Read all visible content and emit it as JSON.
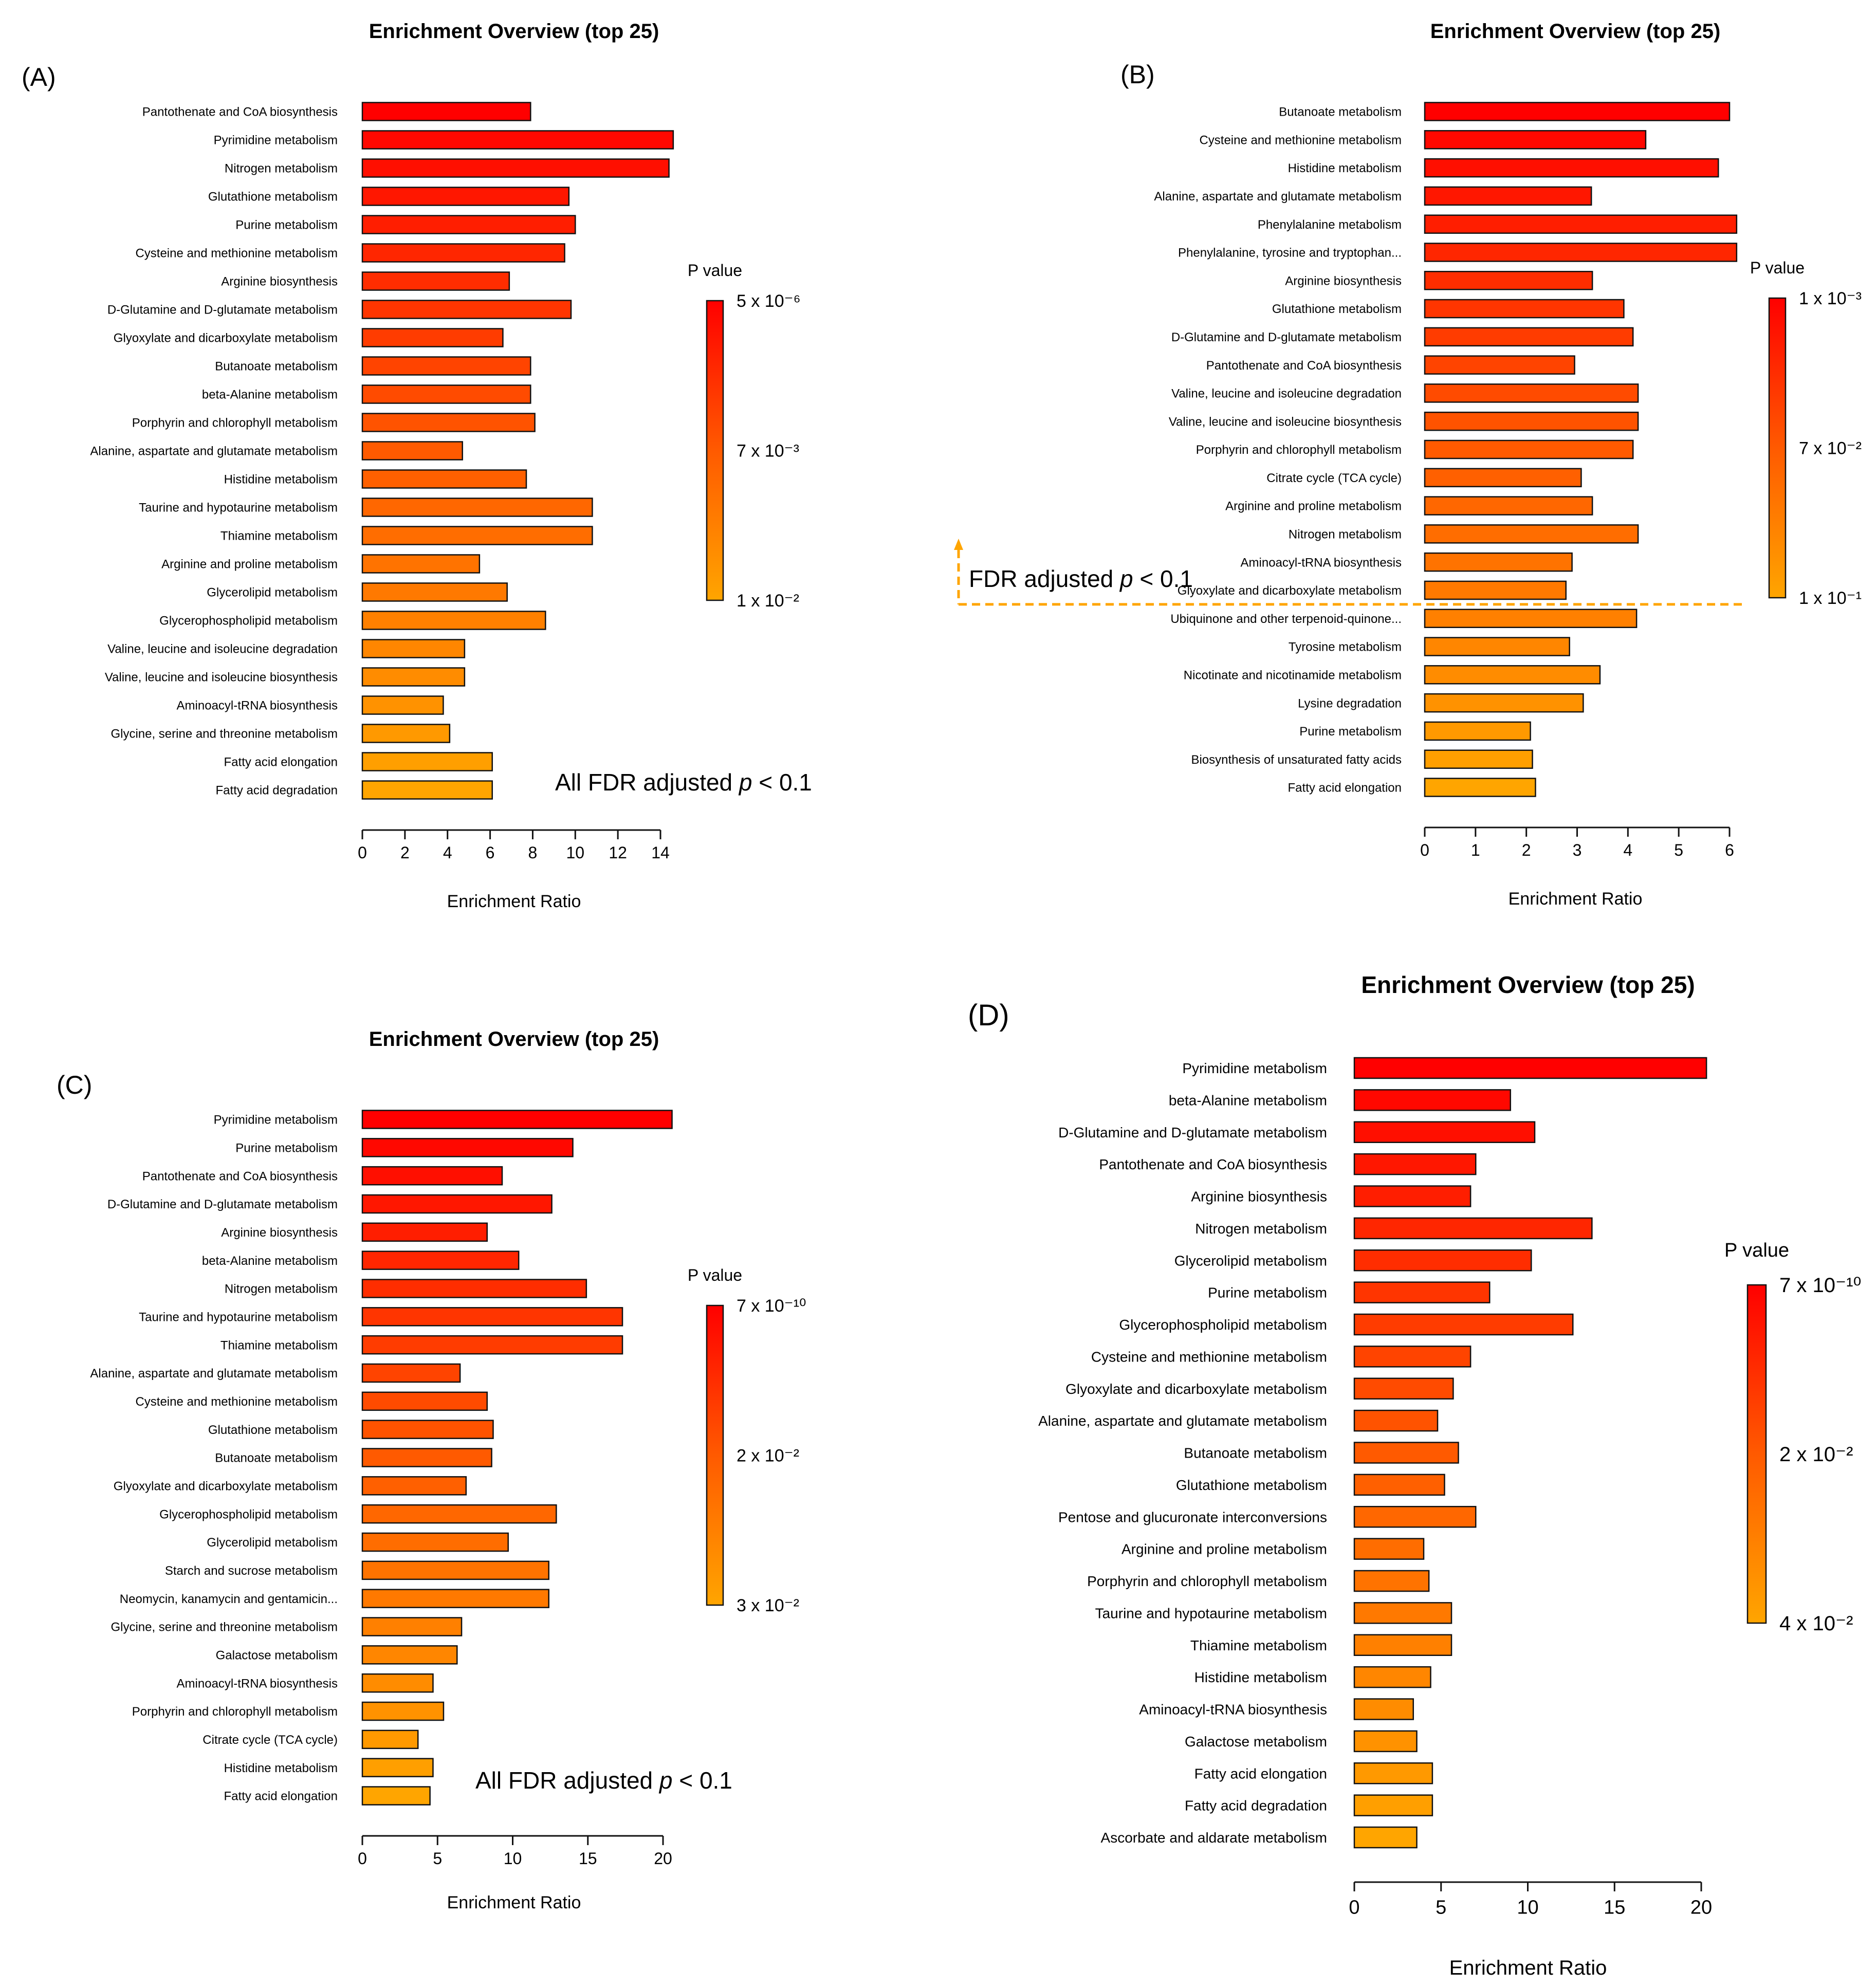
{
  "chart_data": [
    {
      "type": "bar",
      "panel_label": "(A)",
      "title": "Enrichment Overview (top 25)",
      "xlabel": "Enrichment Ratio",
      "ylabel": "",
      "xlim": [
        0,
        14
      ],
      "xticks": [
        0,
        2,
        4,
        6,
        8,
        10,
        12,
        14
      ],
      "legend_title": "P value",
      "legend_labels": [
        "5 x 10⁻⁶",
        "7 x 10⁻³",
        "1 x 10⁻²"
      ],
      "annotation": "All FDR adjusted p < 0.1",
      "categories": [
        "Pantothenate and CoA biosynthesis",
        "Pyrimidine metabolism",
        "Nitrogen metabolism",
        "Glutathione metabolism",
        "Purine metabolism",
        "Cysteine and methionine metabolism",
        "Arginine biosynthesis",
        "D-Glutamine and D-glutamate metabolism",
        "Glyoxylate and dicarboxylate metabolism",
        "Butanoate metabolism",
        "beta-Alanine metabolism",
        "Porphyrin and chlorophyll metabolism",
        "Alanine, aspartate and glutamate metabolism",
        "Histidine metabolism",
        "Taurine and hypotaurine metabolism",
        "Thiamine metabolism",
        "Arginine and proline metabolism",
        "Glycerolipid metabolism",
        "Glycerophospholipid metabolism",
        "Valine, leucine and isoleucine degradation",
        "Valine, leucine and isoleucine biosynthesis",
        "Aminoacyl-tRNA biosynthesis",
        "Glycine, serine and threonine metabolism",
        "Fatty acid elongation",
        "Fatty acid degradation"
      ],
      "values": [
        7.9,
        14.6,
        14.4,
        9.7,
        10.0,
        9.5,
        6.9,
        9.8,
        6.6,
        7.9,
        7.9,
        8.1,
        4.7,
        7.7,
        10.8,
        10.8,
        5.5,
        6.8,
        8.6,
        4.8,
        4.8,
        3.8,
        4.1,
        6.1,
        6.1
      ]
    },
    {
      "type": "bar",
      "panel_label": "(B)",
      "title": "Enrichment Overview (top 25)",
      "xlabel": "Enrichment Ratio",
      "ylabel": "",
      "xlim": [
        0,
        6
      ],
      "xticks": [
        0,
        1,
        2,
        3,
        4,
        5,
        6
      ],
      "legend_title": "P value",
      "legend_labels": [
        "1 x 10⁻³",
        "7 x 10⁻²",
        "1 x 10⁻¹"
      ],
      "annotation": "FDR adjusted p < 0.1",
      "categories": [
        "Butanoate metabolism",
        "Cysteine and methionine metabolism",
        "Histidine metabolism",
        "Alanine, aspartate and glutamate metabolism",
        "Phenylalanine metabolism",
        "Phenylalanine, tyrosine and tryptophan...",
        "Arginine biosynthesis",
        "Glutathione metabolism",
        "D-Glutamine and D-glutamate metabolism",
        "Pantothenate and CoA biosynthesis",
        "Valine, leucine and isoleucine degradation",
        "Valine, leucine and isoleucine biosynthesis",
        "Porphyrin and chlorophyll metabolism",
        "Citrate cycle (TCA cycle)",
        "Arginine and proline metabolism",
        "Nitrogen metabolism",
        "Aminoacyl-tRNA biosynthesis",
        "Glyoxylate and dicarboxylate metabolism",
        "Ubiquinone and other terpenoid-quinone...",
        "Tyrosine metabolism",
        "Nicotinate and nicotinamide metabolism",
        "Lysine degradation",
        "Purine metabolism",
        "Biosynthesis of unsaturated fatty acids",
        "Fatty acid elongation"
      ],
      "values": [
        6.0,
        4.35,
        5.78,
        3.28,
        6.14,
        6.14,
        3.3,
        3.92,
        4.1,
        2.95,
        4.2,
        4.2,
        4.1,
        3.08,
        3.3,
        4.2,
        2.9,
        2.78,
        4.17,
        2.85,
        3.45,
        3.12,
        2.08,
        2.12,
        2.18
      ]
    },
    {
      "type": "bar",
      "panel_label": "(C)",
      "title": "Enrichment Overview (top 25)",
      "xlabel": "Enrichment Ratio",
      "ylabel": "",
      "xlim": [
        0,
        20
      ],
      "xticks": [
        0,
        5,
        10,
        15,
        20
      ],
      "legend_title": "P value",
      "legend_labels": [
        "7 x 10⁻¹⁰",
        "2 x 10⁻²",
        "3 x 10⁻²"
      ],
      "annotation": "All FDR adjusted p < 0.1",
      "categories": [
        "Pyrimidine metabolism",
        "Purine metabolism",
        "Pantothenate and CoA biosynthesis",
        "D-Glutamine and D-glutamate metabolism",
        "Arginine biosynthesis",
        "beta-Alanine metabolism",
        "Nitrogen metabolism",
        "Taurine and hypotaurine metabolism",
        "Thiamine metabolism",
        "Alanine, aspartate and glutamate metabolism",
        "Cysteine and methionine metabolism",
        "Glutathione metabolism",
        "Butanoate metabolism",
        "Glyoxylate and dicarboxylate metabolism",
        "Glycerophospholipid metabolism",
        "Glycerolipid metabolism",
        "Starch and sucrose metabolism",
        "Neomycin, kanamycin and gentamicin...",
        "Glycine, serine and threonine metabolism",
        "Galactose metabolism",
        "Aminoacyl-tRNA biosynthesis",
        "Porphyrin and chlorophyll metabolism",
        "Citrate cycle (TCA cycle)",
        "Histidine metabolism",
        "Fatty acid elongation"
      ],
      "values": [
        20.6,
        14.0,
        9.3,
        12.6,
        8.3,
        10.4,
        14.9,
        17.3,
        17.3,
        6.5,
        8.3,
        8.7,
        8.6,
        6.9,
        12.9,
        9.7,
        12.4,
        12.4,
        6.6,
        6.3,
        4.7,
        5.4,
        3.7,
        4.7,
        4.5
      ]
    },
    {
      "type": "bar",
      "panel_label": "(D)",
      "title": "Enrichment Overview (top 25)",
      "xlabel": "Enrichment Ratio",
      "ylabel": "",
      "xlim": [
        0,
        20
      ],
      "xticks": [
        0,
        5,
        10,
        15,
        20
      ],
      "legend_title": "P value",
      "legend_labels": [
        "7 x 10⁻¹⁰",
        "2 x 10⁻²",
        "4 x 10⁻²"
      ],
      "annotation": "",
      "categories": [
        "Pyrimidine metabolism",
        "beta-Alanine metabolism",
        "D-Glutamine and D-glutamate metabolism",
        "Pantothenate and CoA biosynthesis",
        "Arginine biosynthesis",
        "Nitrogen metabolism",
        "Glycerolipid metabolism",
        "Purine metabolism",
        "Glycerophospholipid metabolism",
        "Cysteine and methionine metabolism",
        "Glyoxylate and dicarboxylate metabolism",
        "Alanine, aspartate and glutamate metabolism",
        "Butanoate metabolism",
        "Glutathione metabolism",
        "Pentose and glucuronate interconversions",
        "Arginine and proline metabolism",
        "Porphyrin and chlorophyll metabolism",
        "Taurine and hypotaurine metabolism",
        "Thiamine metabolism",
        "Histidine metabolism",
        "Aminoacyl-tRNA biosynthesis",
        "Galactose metabolism",
        "Fatty acid elongation",
        "Fatty acid degradation",
        "Ascorbate and aldarate metabolism"
      ],
      "values": [
        20.3,
        9.0,
        10.4,
        7.0,
        6.7,
        13.7,
        10.2,
        7.8,
        12.6,
        6.7,
        5.7,
        4.8,
        6.0,
        5.2,
        7.0,
        4.0,
        4.3,
        5.6,
        5.6,
        4.4,
        3.4,
        3.6,
        4.5,
        4.5,
        3.6
      ]
    }
  ],
  "colors": {
    "top": "#ff0000",
    "middle": "#ff5a00",
    "bottom": "#ffa500",
    "annotation_dash": "#ffa500"
  }
}
